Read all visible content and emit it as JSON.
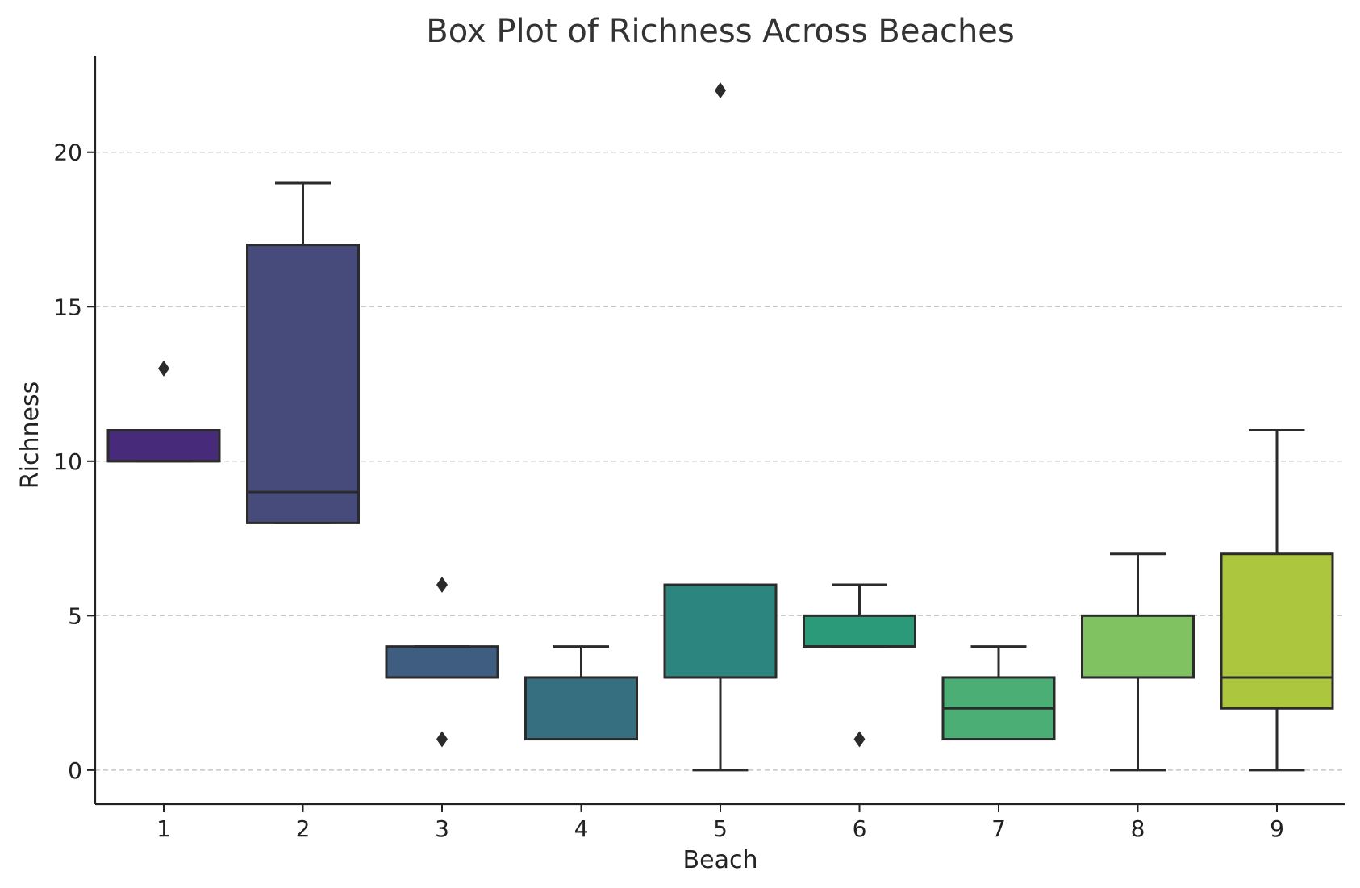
{
  "chart_data": {
    "type": "boxplot",
    "title": "Box Plot of Richness Across Beaches",
    "xlabel": "Beach",
    "ylabel": "Richness",
    "ylim": [
      -1.1,
      23.1
    ],
    "yticks": [
      0,
      5,
      10,
      15,
      20
    ],
    "grid": "y-dashed",
    "categories": [
      "1",
      "2",
      "3",
      "4",
      "5",
      "6",
      "7",
      "8",
      "9"
    ],
    "boxes": [
      {
        "category": "1",
        "whisker_low": 10,
        "q1": 10,
        "median": 10,
        "q3": 11,
        "whisker_high": 11,
        "outliers": [
          13
        ],
        "color": "#472a7a"
      },
      {
        "category": "2",
        "whisker_low": 8,
        "q1": 8,
        "median": 9,
        "q3": 17,
        "whisker_high": 19,
        "outliers": [],
        "color": "#474b7b"
      },
      {
        "category": "3",
        "whisker_low": 3,
        "q1": 3,
        "median": 3,
        "q3": 4,
        "whisker_high": 4,
        "outliers": [
          6,
          1
        ],
        "color": "#3f5c81"
      },
      {
        "category": "4",
        "whisker_low": 1,
        "q1": 1,
        "median": 1,
        "q3": 3,
        "whisker_high": 4,
        "outliers": [],
        "color": "#366f80"
      },
      {
        "category": "5",
        "whisker_low": 0,
        "q1": 3,
        "median": 3,
        "q3": 6,
        "whisker_high": 6,
        "outliers": [
          22
        ],
        "color": "#2c857e"
      },
      {
        "category": "6",
        "whisker_low": 4,
        "q1": 4,
        "median": 4,
        "q3": 5,
        "whisker_high": 6,
        "outliers": [
          1
        ],
        "color": "#2a9a79"
      },
      {
        "category": "7",
        "whisker_low": 1,
        "q1": 1,
        "median": 2,
        "q3": 3,
        "whisker_high": 4,
        "outliers": [],
        "color": "#4aae75"
      },
      {
        "category": "8",
        "whisker_low": 0,
        "q1": 3,
        "median": 3,
        "q3": 5,
        "whisker_high": 7,
        "outliers": [],
        "color": "#80c262"
      },
      {
        "category": "9",
        "whisker_low": 0,
        "q1": 2,
        "median": 3,
        "q3": 7,
        "whisker_high": 11,
        "outliers": [],
        "color": "#acc73d"
      }
    ]
  }
}
